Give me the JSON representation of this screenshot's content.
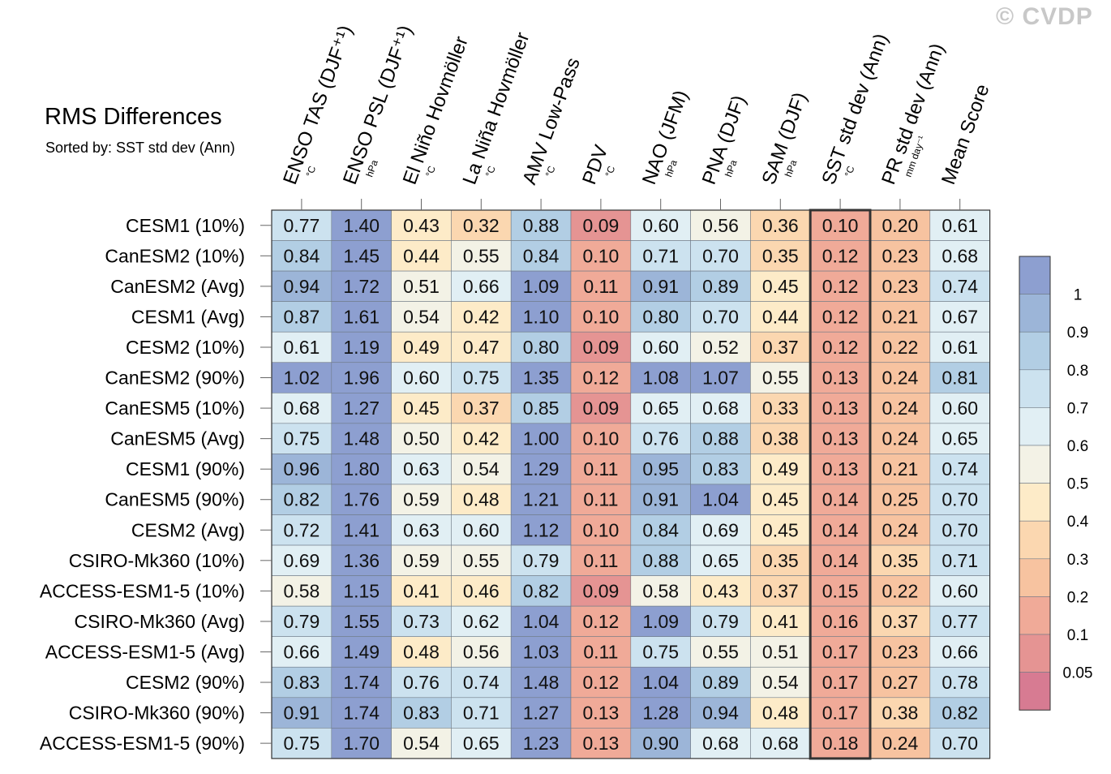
{
  "watermark": "© CVDP",
  "chart_data": {
    "type": "heatmap",
    "title": "RMS Differences",
    "subtitle": "Sorted by: SST std dev (Ann)",
    "columns": [
      {
        "label": "ENSO TAS (DJF⁺¹)",
        "unit": "°C"
      },
      {
        "label": "ENSO PSL (DJF⁺¹)",
        "unit": "hPa"
      },
      {
        "label": "El Niño Hovmöller",
        "unit": "°C"
      },
      {
        "label": "La Niña Hovmöller",
        "unit": "°C"
      },
      {
        "label": "AMV Low-Pass",
        "unit": "°C"
      },
      {
        "label": "PDV",
        "unit": "°C"
      },
      {
        "label": "NAO (JFM)",
        "unit": "hPa"
      },
      {
        "label": "PNA (DJF)",
        "unit": "hPa"
      },
      {
        "label": "SAM (DJF)",
        "unit": "hPa"
      },
      {
        "label": "SST std dev (Ann)",
        "unit": "°C"
      },
      {
        "label": "PR std dev (Ann)",
        "unit": "mm day⁻¹"
      },
      {
        "label": "Mean Score",
        "unit": ""
      }
    ],
    "rows": [
      "CESM1 (10%)",
      "CanESM2 (10%)",
      "CanESM2 (Avg)",
      "CESM1 (Avg)",
      "CESM2 (10%)",
      "CanESM2 (90%)",
      "CanESM5 (10%)",
      "CanESM5 (Avg)",
      "CESM1 (90%)",
      "CanESM5 (90%)",
      "CESM2 (Avg)",
      "CSIRO-Mk360 (10%)",
      "ACCESS-ESM1-5 (10%)",
      "CSIRO-Mk360 (Avg)",
      "ACCESS-ESM1-5 (Avg)",
      "CESM2 (90%)",
      "CSIRO-Mk360 (90%)",
      "ACCESS-ESM1-5 (90%)"
    ],
    "values": [
      [
        "0.77",
        "1.40",
        "0.43",
        "0.32",
        "0.88",
        "0.09",
        "0.60",
        "0.56",
        "0.36",
        "0.10",
        "0.20",
        "0.61"
      ],
      [
        "0.84",
        "1.45",
        "0.44",
        "0.55",
        "0.84",
        "0.10",
        "0.71",
        "0.70",
        "0.35",
        "0.12",
        "0.23",
        "0.68"
      ],
      [
        "0.94",
        "1.72",
        "0.51",
        "0.66",
        "1.09",
        "0.11",
        "0.91",
        "0.89",
        "0.45",
        "0.12",
        "0.23",
        "0.74"
      ],
      [
        "0.87",
        "1.61",
        "0.54",
        "0.42",
        "1.10",
        "0.10",
        "0.80",
        "0.70",
        "0.44",
        "0.12",
        "0.21",
        "0.67"
      ],
      [
        "0.61",
        "1.19",
        "0.49",
        "0.47",
        "0.80",
        "0.09",
        "0.60",
        "0.52",
        "0.37",
        "0.12",
        "0.22",
        "0.61"
      ],
      [
        "1.02",
        "1.96",
        "0.60",
        "0.75",
        "1.35",
        "0.12",
        "1.08",
        "1.07",
        "0.55",
        "0.13",
        "0.24",
        "0.81"
      ],
      [
        "0.68",
        "1.27",
        "0.45",
        "0.37",
        "0.85",
        "0.09",
        "0.65",
        "0.68",
        "0.33",
        "0.13",
        "0.24",
        "0.60"
      ],
      [
        "0.75",
        "1.48",
        "0.50",
        "0.42",
        "1.00",
        "0.10",
        "0.76",
        "0.88",
        "0.38",
        "0.13",
        "0.24",
        "0.65"
      ],
      [
        "0.96",
        "1.80",
        "0.63",
        "0.54",
        "1.29",
        "0.11",
        "0.95",
        "0.83",
        "0.49",
        "0.13",
        "0.21",
        "0.74"
      ],
      [
        "0.82",
        "1.76",
        "0.59",
        "0.48",
        "1.21",
        "0.11",
        "0.91",
        "1.04",
        "0.45",
        "0.14",
        "0.25",
        "0.70"
      ],
      [
        "0.72",
        "1.41",
        "0.63",
        "0.60",
        "1.12",
        "0.10",
        "0.84",
        "0.69",
        "0.45",
        "0.14",
        "0.24",
        "0.70"
      ],
      [
        "0.69",
        "1.36",
        "0.59",
        "0.55",
        "0.79",
        "0.11",
        "0.88",
        "0.65",
        "0.35",
        "0.14",
        "0.35",
        "0.71"
      ],
      [
        "0.58",
        "1.15",
        "0.41",
        "0.46",
        "0.82",
        "0.09",
        "0.58",
        "0.43",
        "0.37",
        "0.15",
        "0.22",
        "0.60"
      ],
      [
        "0.79",
        "1.55",
        "0.73",
        "0.62",
        "1.04",
        "0.12",
        "1.09",
        "0.79",
        "0.41",
        "0.16",
        "0.37",
        "0.77"
      ],
      [
        "0.66",
        "1.49",
        "0.48",
        "0.56",
        "1.03",
        "0.11",
        "0.75",
        "0.55",
        "0.51",
        "0.17",
        "0.23",
        "0.66"
      ],
      [
        "0.83",
        "1.74",
        "0.76",
        "0.74",
        "1.48",
        "0.12",
        "1.04",
        "0.89",
        "0.54",
        "0.17",
        "0.27",
        "0.78"
      ],
      [
        "0.91",
        "1.74",
        "0.83",
        "0.71",
        "1.27",
        "0.13",
        "1.28",
        "0.94",
        "0.48",
        "0.17",
        "0.38",
        "0.82"
      ],
      [
        "0.75",
        "1.70",
        "0.54",
        "0.65",
        "1.23",
        "0.13",
        "0.90",
        "0.68",
        "0.68",
        "0.18",
        "0.24",
        "0.70"
      ]
    ],
    "sorted_column": "SST std dev (Ann)",
    "colorbar": {
      "levels": [
        0.05,
        0.1,
        0.2,
        0.3,
        0.4,
        0.5,
        0.6,
        0.7,
        0.8,
        0.9,
        1
      ],
      "labels": [
        "0.05",
        "0.1",
        "0.2",
        "0.3",
        "0.4",
        "0.5",
        "0.6",
        "0.7",
        "0.8",
        "0.9",
        "1"
      ],
      "colors": [
        "#d77b92",
        "#e59493",
        "#f0aa98",
        "#f7c3a0",
        "#fbd7b0",
        "#fdebc8",
        "#f3f2e6",
        "#e1eff4",
        "#cce2ef",
        "#b2cee4",
        "#9cb5d8",
        "#8d9fd0"
      ]
    }
  }
}
